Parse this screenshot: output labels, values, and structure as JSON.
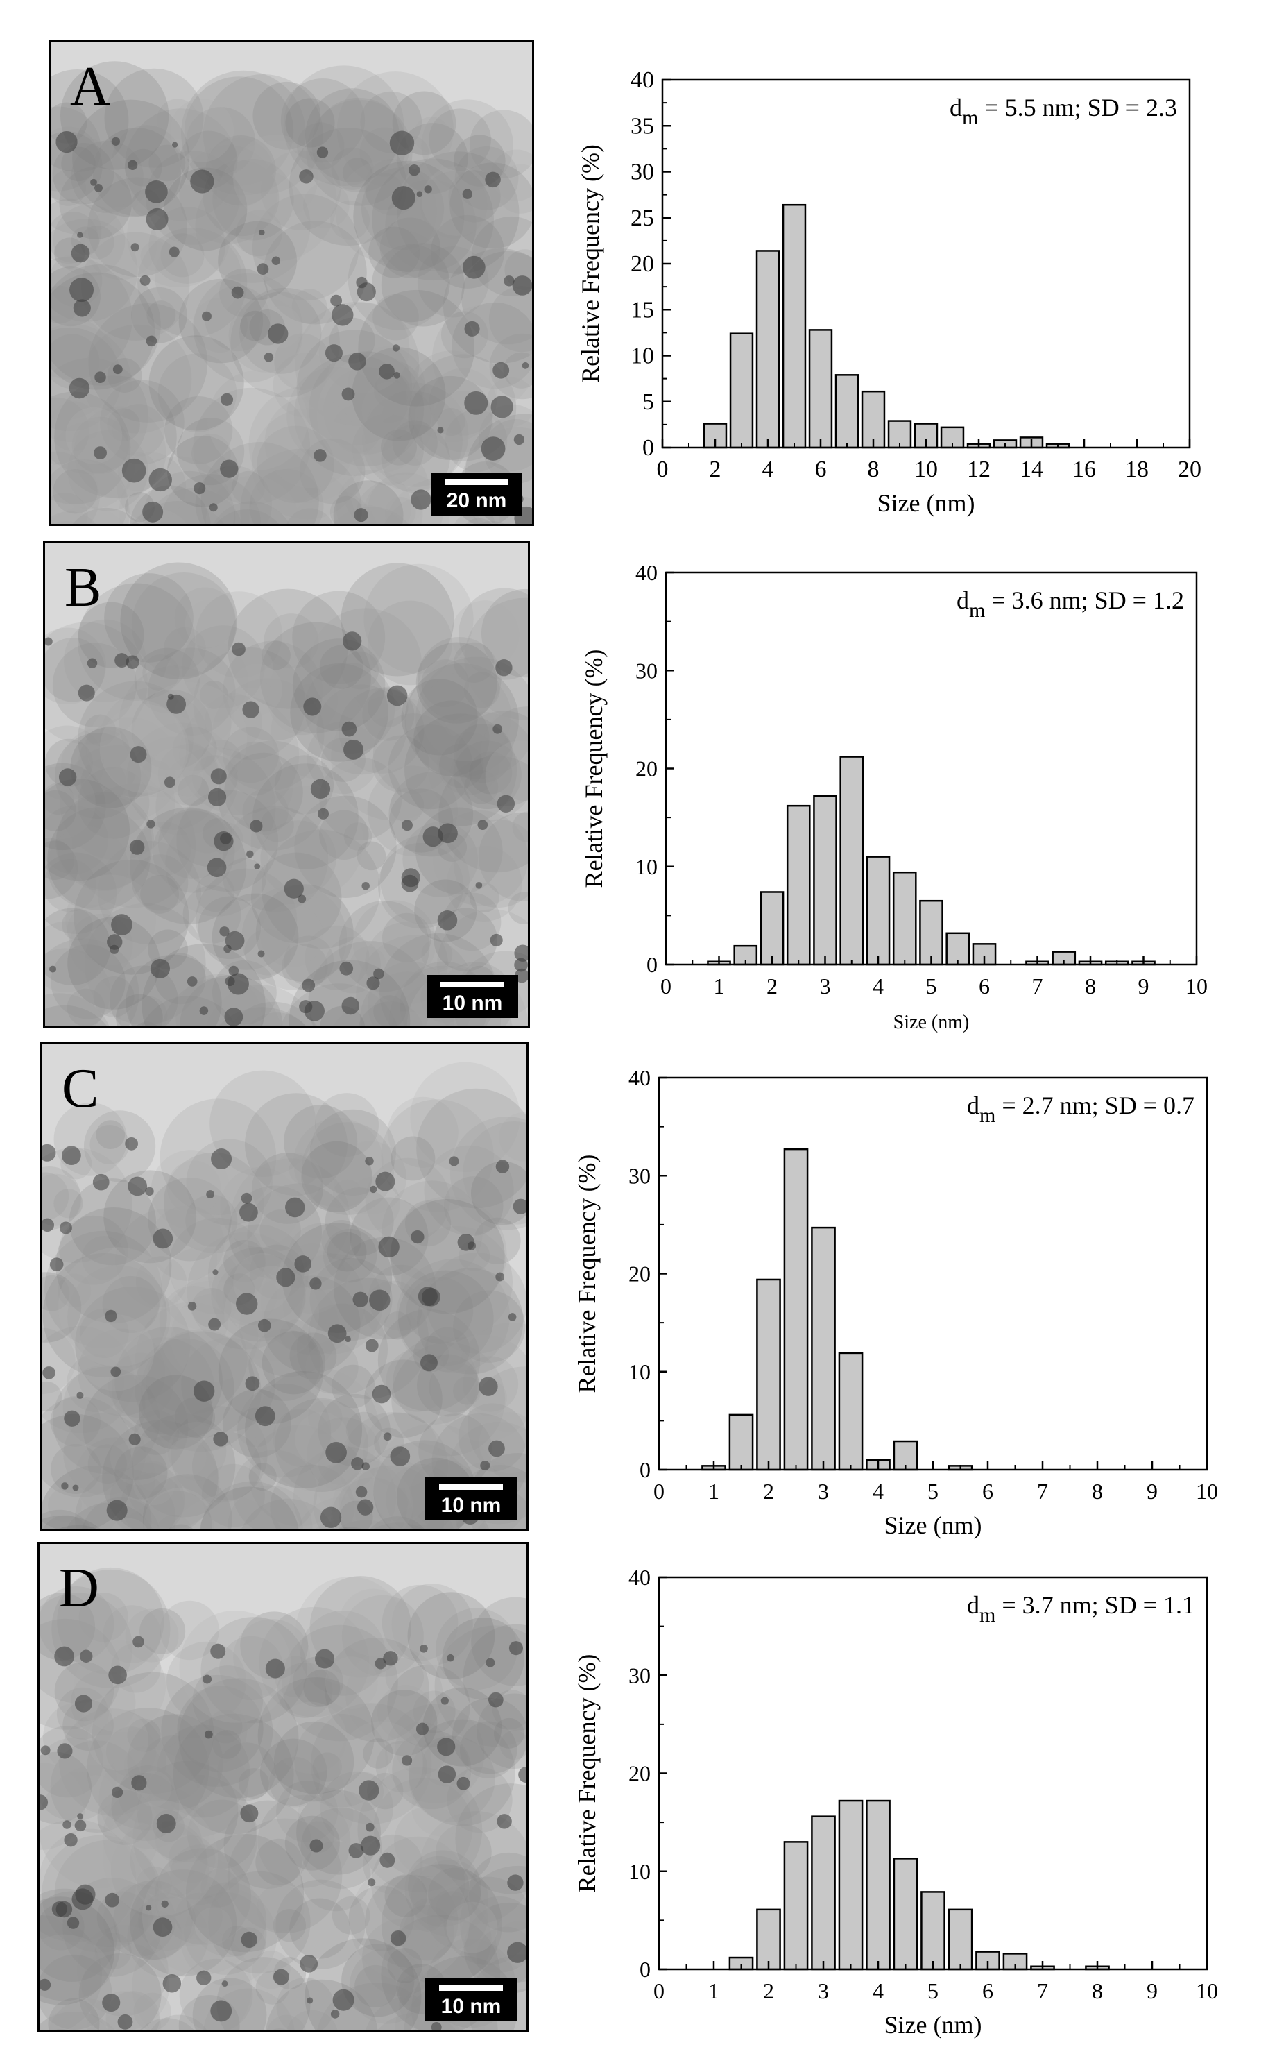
{
  "colors": {
    "bar_fill": "#c8c8c8",
    "bar_stroke": "#000000",
    "axis": "#000000",
    "micrograph_bg": "#9a9a9a",
    "scalebar_bg": "#000000"
  },
  "micrographs": [
    {
      "letter": "A",
      "scale_label": "20 nm"
    },
    {
      "letter": "B",
      "scale_label": "10 nm"
    },
    {
      "letter": "C",
      "scale_label": "10 nm"
    },
    {
      "letter": "D",
      "scale_label": "10 nm"
    }
  ],
  "chart_data": [
    {
      "type": "bar",
      "annotation": {
        "prefix": "d",
        "subscript": "m",
        "text": " = 5.5 nm; SD = 2.3"
      },
      "xlabel": "Size (nm)",
      "ylabel": "Relative Frequency (%)",
      "xlim": [
        0,
        20
      ],
      "ylim": [
        0,
        40
      ],
      "xticks": [
        "0",
        "2",
        "4",
        "6",
        "8",
        "10",
        "12",
        "14",
        "16",
        "18",
        "20"
      ],
      "yticks": [
        "0",
        "5",
        "10",
        "15",
        "20",
        "25",
        "30",
        "35",
        "40"
      ],
      "bin_width": 1,
      "x": [
        2,
        3,
        4,
        5,
        6,
        7,
        8,
        9,
        10,
        11,
        12,
        13,
        14,
        15
      ],
      "values": [
        2.6,
        12.4,
        21.4,
        26.4,
        12.8,
        7.9,
        6.1,
        2.9,
        2.6,
        2.2,
        0.4,
        0.8,
        1.1,
        0.4
      ]
    },
    {
      "type": "bar",
      "annotation": {
        "prefix": "d",
        "subscript": "m",
        "text": " = 3.6 nm; SD = 1.2"
      },
      "xlabel": "Size (nm)",
      "ylabel": "Relative Frequency (%)",
      "xlim": [
        0,
        10
      ],
      "ylim": [
        0,
        40
      ],
      "xticks": [
        "0",
        "1",
        "2",
        "3",
        "4",
        "5",
        "6",
        "7",
        "8",
        "9",
        "10"
      ],
      "yticks": [
        "0",
        "10",
        "20",
        "30",
        "40"
      ],
      "bin_width": 0.5,
      "x": [
        1,
        1.5,
        2,
        2.5,
        3,
        3.5,
        4,
        4.5,
        5,
        5.5,
        6,
        7,
        7.5,
        8,
        8.5,
        9
      ],
      "values": [
        0.3,
        1.9,
        7.4,
        16.2,
        17.2,
        21.2,
        11.0,
        9.4,
        6.5,
        3.2,
        2.1,
        0.3,
        1.3,
        0.3,
        0.3,
        0.3
      ]
    },
    {
      "type": "bar",
      "annotation": {
        "prefix": "d",
        "subscript": "m",
        "text": " = 2.7 nm; SD = 0.7"
      },
      "xlabel": "Size (nm)",
      "ylabel": "Relative Frequency (%)",
      "xlim": [
        0,
        10
      ],
      "ylim": [
        0,
        40
      ],
      "xticks": [
        "0",
        "1",
        "2",
        "3",
        "4",
        "5",
        "6",
        "7",
        "8",
        "9",
        "10"
      ],
      "yticks": [
        "0",
        "10",
        "20",
        "30",
        "40"
      ],
      "bin_width": 0.5,
      "x": [
        1,
        1.5,
        2,
        2.5,
        3,
        3.5,
        4,
        4.5,
        5.5
      ],
      "values": [
        0.4,
        5.6,
        19.4,
        32.7,
        24.7,
        11.9,
        1.0,
        2.9,
        0.4
      ]
    },
    {
      "type": "bar",
      "annotation": {
        "prefix": "d",
        "subscript": "m",
        "text": " = 3.7 nm; SD = 1.1"
      },
      "xlabel": "Size (nm)",
      "ylabel": "Relative Frequency (%)",
      "xlim": [
        0,
        10
      ],
      "ylim": [
        0,
        40
      ],
      "xticks": [
        "0",
        "1",
        "2",
        "3",
        "4",
        "5",
        "6",
        "7",
        "8",
        "9",
        "10"
      ],
      "yticks": [
        "0",
        "10",
        "20",
        "30",
        "40"
      ],
      "bin_width": 0.5,
      "x": [
        1.5,
        2,
        2.5,
        3,
        3.5,
        4,
        4.5,
        5,
        5.5,
        6,
        6.5,
        7,
        8
      ],
      "values": [
        1.2,
        6.1,
        13.0,
        15.6,
        17.2,
        17.2,
        11.3,
        7.9,
        6.1,
        1.8,
        1.6,
        0.3,
        0.3
      ]
    }
  ]
}
